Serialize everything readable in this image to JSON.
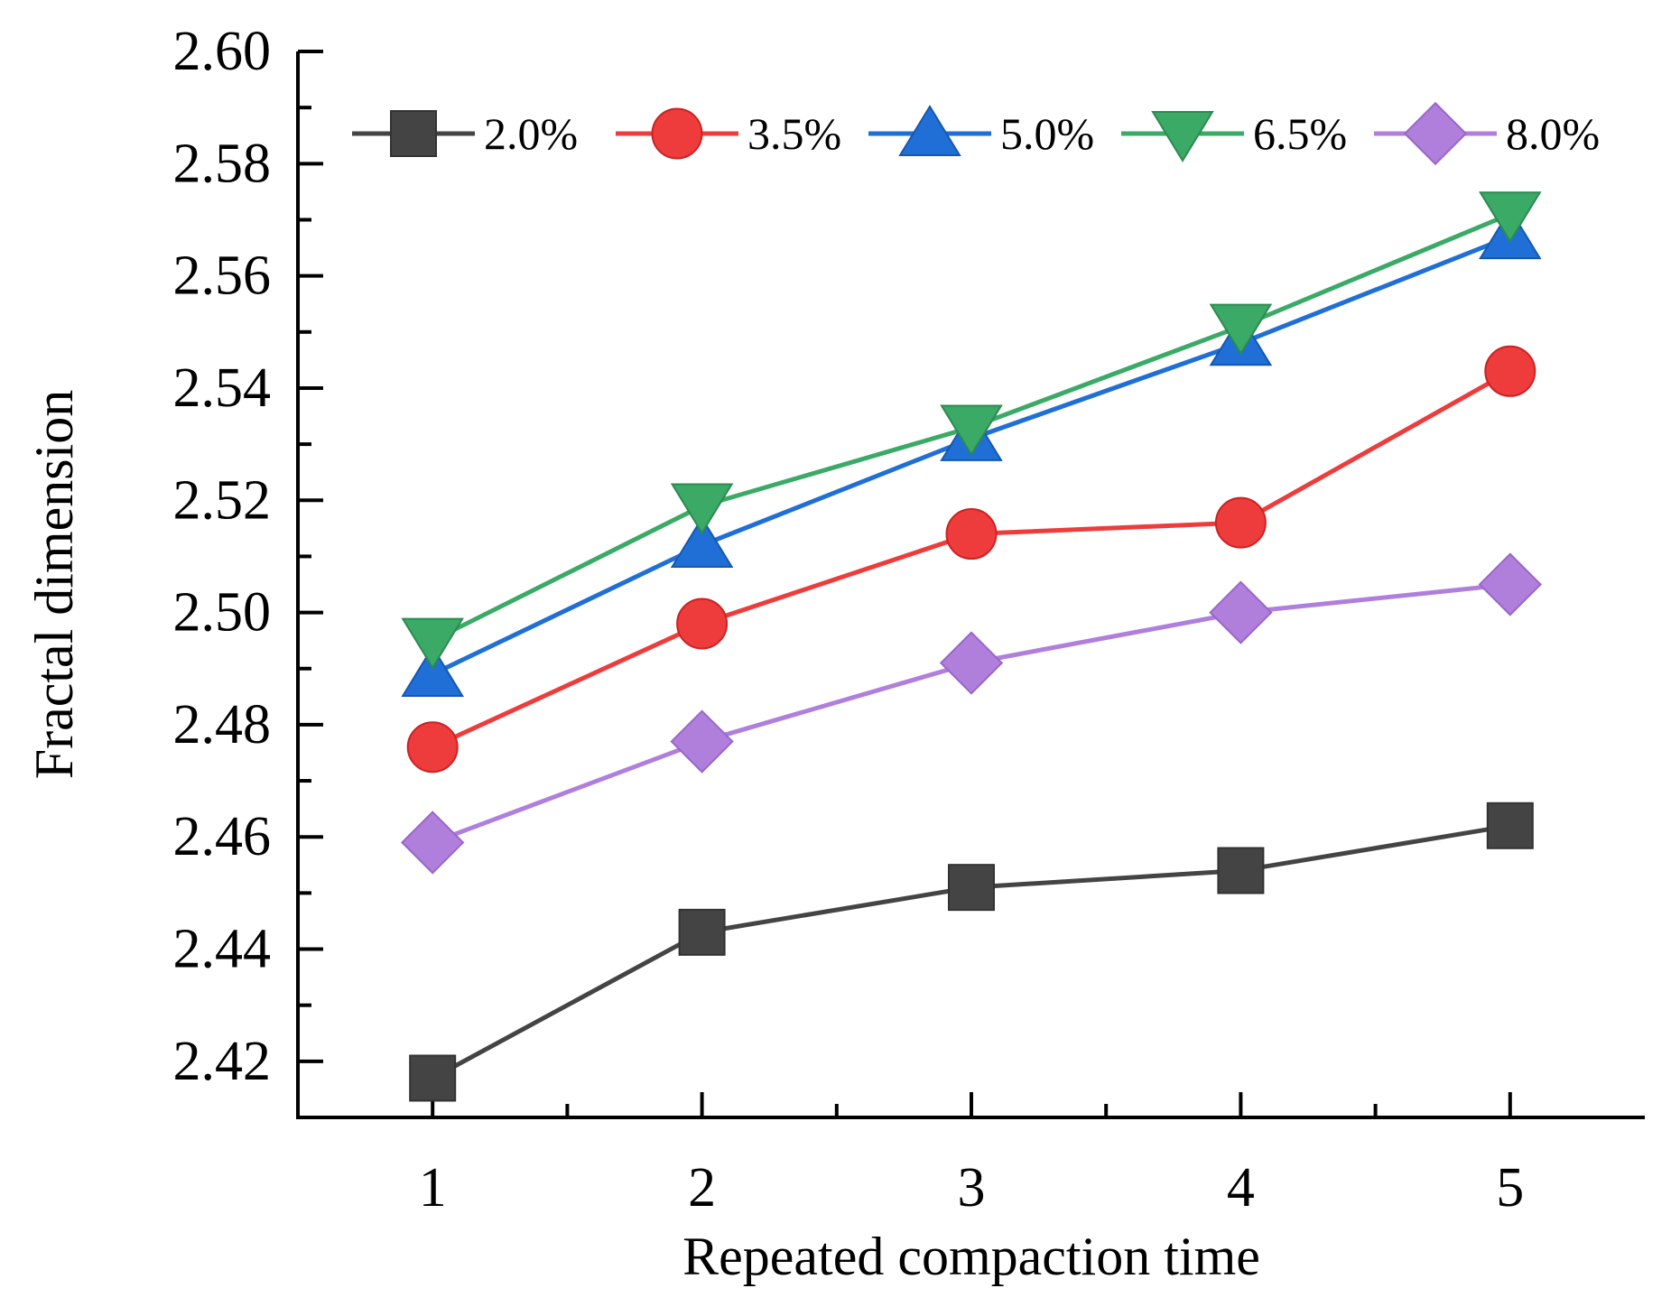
{
  "chart_data": {
    "type": "line",
    "title": "",
    "xlabel": "Repeated compaction time",
    "ylabel": "Fractal dimension",
    "x": [
      1,
      2,
      3,
      4,
      5
    ],
    "xlim": [
      0.5,
      5.5
    ],
    "ylim": [
      2.41,
      2.6
    ],
    "yticks": [
      2.42,
      2.44,
      2.46,
      2.48,
      2.5,
      2.52,
      2.54,
      2.56,
      2.58,
      2.6
    ],
    "ytick_labels": [
      "2.42",
      "2.44",
      "2.46",
      "2.48",
      "2.50",
      "2.52",
      "2.54",
      "2.56",
      "2.58",
      "2.60"
    ],
    "xtick_labels": [
      "1",
      "2",
      "3",
      "4",
      "5"
    ],
    "grid": false,
    "legend_position": "top",
    "series": [
      {
        "name": "2.0%",
        "marker": "square",
        "color": "#444444",
        "values": [
          2.417,
          2.443,
          2.451,
          2.454,
          2.462
        ]
      },
      {
        "name": "3.5%",
        "marker": "circle",
        "color": "#ee3c3c",
        "values": [
          2.476,
          2.498,
          2.514,
          2.516,
          2.543
        ]
      },
      {
        "name": "5.0%",
        "marker": "triangle-up",
        "color": "#1f6fd6",
        "values": [
          2.489,
          2.512,
          2.531,
          2.548,
          2.567
        ]
      },
      {
        "name": "6.5%",
        "marker": "triangle-down",
        "color": "#3aaa66",
        "values": [
          2.495,
          2.519,
          2.533,
          2.551,
          2.571
        ]
      },
      {
        "name": "8.0%",
        "marker": "diamond",
        "color": "#b07fdc",
        "values": [
          2.459,
          2.477,
          2.491,
          2.5,
          2.505
        ]
      }
    ]
  }
}
